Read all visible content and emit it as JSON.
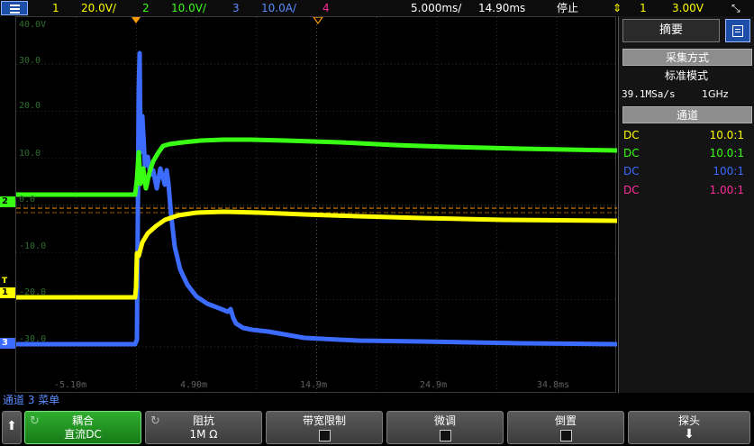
{
  "topbar": {
    "ch1_num": "1",
    "ch1_scale": "20.0V/",
    "ch2_num": "2",
    "ch2_scale": "10.0V/",
    "ch3_num": "3",
    "ch3_scale": "10.0A/",
    "ch4_num": "4",
    "timebase": "5.000ms/",
    "delay": "14.90ms",
    "run_state": "停止",
    "trigger_source": "1",
    "trigger_level": "3.00V"
  },
  "plot": {
    "y_labels": [
      "40.0V",
      "30.0",
      "20.0",
      "10.0",
      "0.0",
      "-10.0",
      "-20.0",
      "-30.0"
    ],
    "x_labels": [
      "-5.10m",
      "4.90m",
      "14.9m",
      "24.9m",
      "34.8ms"
    ]
  },
  "markers": {
    "ch1": "1",
    "ch2": "2",
    "ch3": "3",
    "trig": "T"
  },
  "panel": {
    "tab_label": "摘要",
    "acq_header": "采集方式",
    "acq_mode": "标准模式",
    "sample_rate": "39.1MSa/s",
    "bandwidth": "1GHz",
    "channels_header": "通道",
    "channels": [
      {
        "coupling": "DC",
        "probe": "10.0:1",
        "color": "#ffff00"
      },
      {
        "coupling": "DC",
        "probe": "10.0:1",
        "color": "#39ff14"
      },
      {
        "coupling": "DC",
        "probe": "100:1",
        "color": "#3b6bff"
      },
      {
        "coupling": "DC",
        "probe": "1.00:1",
        "color": "#ff2d9a"
      }
    ]
  },
  "softkeys": {
    "menu_title": "通道 3 菜单",
    "coupling_label": "耦合",
    "coupling_value": "直流DC",
    "impedance_label": "阻抗",
    "impedance_value": "1M Ω",
    "bwlimit_label": "带宽限制",
    "fine_label": "微调",
    "invert_label": "倒置",
    "probe_label": "探头"
  },
  "colors": {
    "ch1": "#ffff00",
    "ch2": "#39ff14",
    "ch3": "#3b6bff",
    "ch4": "#ff2d9a",
    "trigger": "#ff9a00"
  }
}
